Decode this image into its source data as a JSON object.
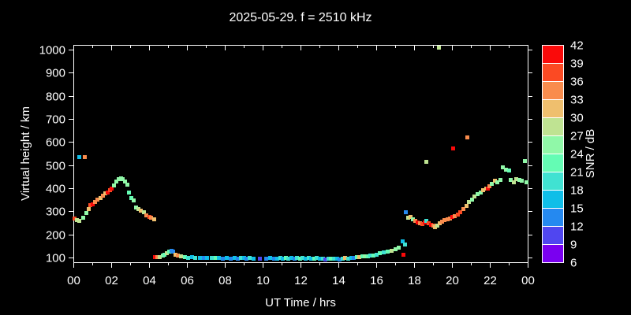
{
  "window": {
    "background": "#000000",
    "foreground": "#ffffff"
  },
  "chart_data": {
    "type": "scatter",
    "title": "2025-05-29. f = 2510 kHz",
    "xlabel": "UT Time / hrs",
    "ylabel": "Virtual height / km",
    "colorbar_label": "SNR / dB",
    "xlim": [
      0,
      24
    ],
    "ylim": [
      80,
      1020
    ],
    "grid": false,
    "marker": "square",
    "marker_size": 5,
    "x_tick_hours": [
      0,
      2,
      4,
      6,
      8,
      10,
      12,
      14,
      16,
      18,
      20,
      22,
      24
    ],
    "x_tick_labels": [
      "00",
      "02",
      "04",
      "06",
      "08",
      "10",
      "12",
      "14",
      "16",
      "18",
      "20",
      "22",
      "00"
    ],
    "x_minor_tick_hours": [
      1,
      3,
      5,
      7,
      9,
      11,
      13,
      15,
      17,
      19,
      21,
      23
    ],
    "y_ticks": [
      100,
      200,
      300,
      400,
      500,
      600,
      700,
      800,
      900,
      1000
    ],
    "colorbar": {
      "position": "right",
      "tick_values": [
        6,
        9,
        12,
        15,
        18,
        21,
        24,
        27,
        30,
        33,
        36,
        39,
        42
      ],
      "palette": [
        "#7A00F0",
        "#5046F0",
        "#2589F0",
        "#0FBEE8",
        "#40E2D2",
        "#64FCB4",
        "#90F8A8",
        "#BFE392",
        "#EFBF6E",
        "#F98C4D",
        "#FB4A23",
        "#FA0A0A"
      ]
    },
    "points_format": "[ut_hours, virtual_height_km, snr_bin_index_0to11]",
    "points": [
      [
        0.05,
        268,
        10
      ],
      [
        0.18,
        263,
        7
      ],
      [
        0.33,
        260,
        7
      ],
      [
        0.3,
        533,
        3
      ],
      [
        0.6,
        534,
        9
      ],
      [
        0.5,
        272,
        6
      ],
      [
        0.68,
        292,
        6
      ],
      [
        0.8,
        310,
        8
      ],
      [
        0.88,
        327,
        10
      ],
      [
        1.0,
        330,
        11
      ],
      [
        1.13,
        342,
        9
      ],
      [
        1.28,
        350,
        9
      ],
      [
        1.42,
        358,
        8
      ],
      [
        1.55,
        367,
        9
      ],
      [
        1.68,
        377,
        8
      ],
      [
        1.8,
        382,
        11
      ],
      [
        1.92,
        390,
        10
      ],
      [
        2.03,
        400,
        11
      ],
      [
        2.15,
        412,
        6
      ],
      [
        2.28,
        430,
        6
      ],
      [
        2.4,
        440,
        6
      ],
      [
        2.5,
        444,
        6
      ],
      [
        2.62,
        438,
        6
      ],
      [
        2.73,
        430,
        6
      ],
      [
        2.85,
        417,
        6
      ],
      [
        2.95,
        382,
        5
      ],
      [
        3.07,
        358,
        5
      ],
      [
        3.17,
        347,
        6
      ],
      [
        3.32,
        317,
        6
      ],
      [
        3.45,
        310,
        7
      ],
      [
        3.57,
        302,
        8
      ],
      [
        3.72,
        297,
        7
      ],
      [
        3.87,
        283,
        9
      ],
      [
        4.0,
        275,
        10
      ],
      [
        4.12,
        272,
        9
      ],
      [
        4.25,
        266,
        8
      ],
      [
        4.3,
        103,
        11
      ],
      [
        4.43,
        103,
        9
      ],
      [
        4.58,
        101,
        7
      ],
      [
        4.72,
        110,
        6
      ],
      [
        4.83,
        114,
        5
      ],
      [
        4.95,
        119,
        7
      ],
      [
        5.05,
        126,
        5
      ],
      [
        5.17,
        131,
        2
      ],
      [
        5.27,
        127,
        2
      ],
      [
        5.4,
        113,
        8
      ],
      [
        5.52,
        110,
        9
      ],
      [
        5.7,
        107,
        7
      ],
      [
        5.9,
        103,
        5
      ],
      [
        6.08,
        100,
        4
      ],
      [
        6.27,
        103,
        3
      ],
      [
        6.45,
        100,
        4
      ],
      [
        6.67,
        100,
        3
      ],
      [
        6.88,
        100,
        2
      ],
      [
        7.08,
        100,
        3
      ],
      [
        7.3,
        100,
        4
      ],
      [
        7.5,
        100,
        5
      ],
      [
        7.7,
        100,
        3
      ],
      [
        7.9,
        97,
        2
      ],
      [
        8.1,
        100,
        3
      ],
      [
        8.3,
        97,
        2
      ],
      [
        8.52,
        100,
        3
      ],
      [
        8.7,
        97,
        2
      ],
      [
        8.85,
        98,
        4
      ],
      [
        9.0,
        100,
        3
      ],
      [
        9.15,
        97,
        2
      ],
      [
        9.33,
        98,
        4
      ],
      [
        9.5,
        97,
        3
      ],
      [
        9.85,
        95,
        1
      ],
      [
        10.2,
        97,
        2
      ],
      [
        10.4,
        98,
        3
      ],
      [
        10.6,
        95,
        2
      ],
      [
        10.77,
        97,
        3
      ],
      [
        10.92,
        98,
        4
      ],
      [
        11.07,
        97,
        3
      ],
      [
        11.22,
        98,
        5
      ],
      [
        11.37,
        97,
        4
      ],
      [
        11.52,
        98,
        3
      ],
      [
        11.67,
        97,
        2
      ],
      [
        11.82,
        98,
        4
      ],
      [
        11.97,
        97,
        5
      ],
      [
        12.12,
        98,
        4
      ],
      [
        12.27,
        97,
        3
      ],
      [
        12.42,
        98,
        4
      ],
      [
        12.57,
        95,
        3
      ],
      [
        12.72,
        97,
        5
      ],
      [
        12.87,
        98,
        4
      ],
      [
        13.02,
        97,
        3
      ],
      [
        13.17,
        95,
        4
      ],
      [
        13.32,
        93,
        1
      ],
      [
        13.47,
        95,
        4
      ],
      [
        13.62,
        97,
        5
      ],
      [
        13.77,
        95,
        4
      ],
      [
        13.92,
        97,
        3
      ],
      [
        14.07,
        93,
        2
      ],
      [
        14.22,
        97,
        4
      ],
      [
        14.37,
        98,
        8
      ],
      [
        14.52,
        97,
        4
      ],
      [
        14.67,
        100,
        3
      ],
      [
        14.82,
        100,
        2
      ],
      [
        14.97,
        103,
        5
      ],
      [
        15.1,
        103,
        8
      ],
      [
        15.25,
        105,
        5
      ],
      [
        15.4,
        107,
        6
      ],
      [
        15.55,
        107,
        5
      ],
      [
        15.7,
        110,
        4
      ],
      [
        15.85,
        110,
        5
      ],
      [
        16.0,
        113,
        4
      ],
      [
        16.2,
        120,
        5
      ],
      [
        16.4,
        123,
        4
      ],
      [
        16.6,
        127,
        5
      ],
      [
        16.8,
        130,
        7
      ],
      [
        17.0,
        135,
        6
      ],
      [
        17.17,
        143,
        6
      ],
      [
        17.42,
        113,
        11
      ],
      [
        17.38,
        170,
        3
      ],
      [
        17.5,
        158,
        4
      ],
      [
        17.55,
        295,
        2
      ],
      [
        17.7,
        272,
        7
      ],
      [
        17.82,
        277,
        8
      ],
      [
        17.92,
        265,
        6
      ],
      [
        18.05,
        258,
        9
      ],
      [
        18.18,
        253,
        11
      ],
      [
        18.3,
        250,
        9
      ],
      [
        18.42,
        245,
        10
      ],
      [
        18.55,
        252,
        11
      ],
      [
        18.65,
        258,
        4
      ],
      [
        18.77,
        247,
        10
      ],
      [
        18.9,
        242,
        11
      ],
      [
        19.0,
        237,
        9
      ],
      [
        19.12,
        232,
        8
      ],
      [
        19.22,
        240,
        7
      ],
      [
        19.35,
        247,
        8
      ],
      [
        19.47,
        255,
        9
      ],
      [
        19.6,
        262,
        9
      ],
      [
        19.75,
        267,
        9
      ],
      [
        19.88,
        270,
        9
      ],
      [
        20.0,
        277,
        11
      ],
      [
        20.15,
        280,
        9
      ],
      [
        20.3,
        285,
        10
      ],
      [
        20.45,
        295,
        10
      ],
      [
        20.6,
        310,
        9
      ],
      [
        20.75,
        323,
        8
      ],
      [
        20.9,
        340,
        7
      ],
      [
        21.05,
        350,
        6
      ],
      [
        21.2,
        363,
        7
      ],
      [
        21.35,
        373,
        6
      ],
      [
        21.5,
        383,
        6
      ],
      [
        21.65,
        393,
        8
      ],
      [
        21.8,
        397,
        8
      ],
      [
        21.88,
        400,
        11
      ],
      [
        21.97,
        407,
        9
      ],
      [
        22.1,
        420,
        6
      ],
      [
        22.25,
        433,
        8
      ],
      [
        22.4,
        427,
        6
      ],
      [
        22.55,
        437,
        6
      ],
      [
        22.7,
        490,
        6
      ],
      [
        22.85,
        480,
        6
      ],
      [
        23.0,
        478,
        5
      ],
      [
        23.12,
        437,
        6
      ],
      [
        23.25,
        427,
        7
      ],
      [
        23.4,
        440,
        7
      ],
      [
        23.55,
        437,
        6
      ],
      [
        23.7,
        433,
        6
      ],
      [
        23.85,
        517,
        6
      ],
      [
        23.95,
        425,
        6
      ],
      [
        18.65,
        513,
        7
      ],
      [
        20.05,
        573,
        11
      ],
      [
        20.8,
        620,
        9
      ],
      [
        19.3,
        1008,
        7
      ]
    ]
  }
}
